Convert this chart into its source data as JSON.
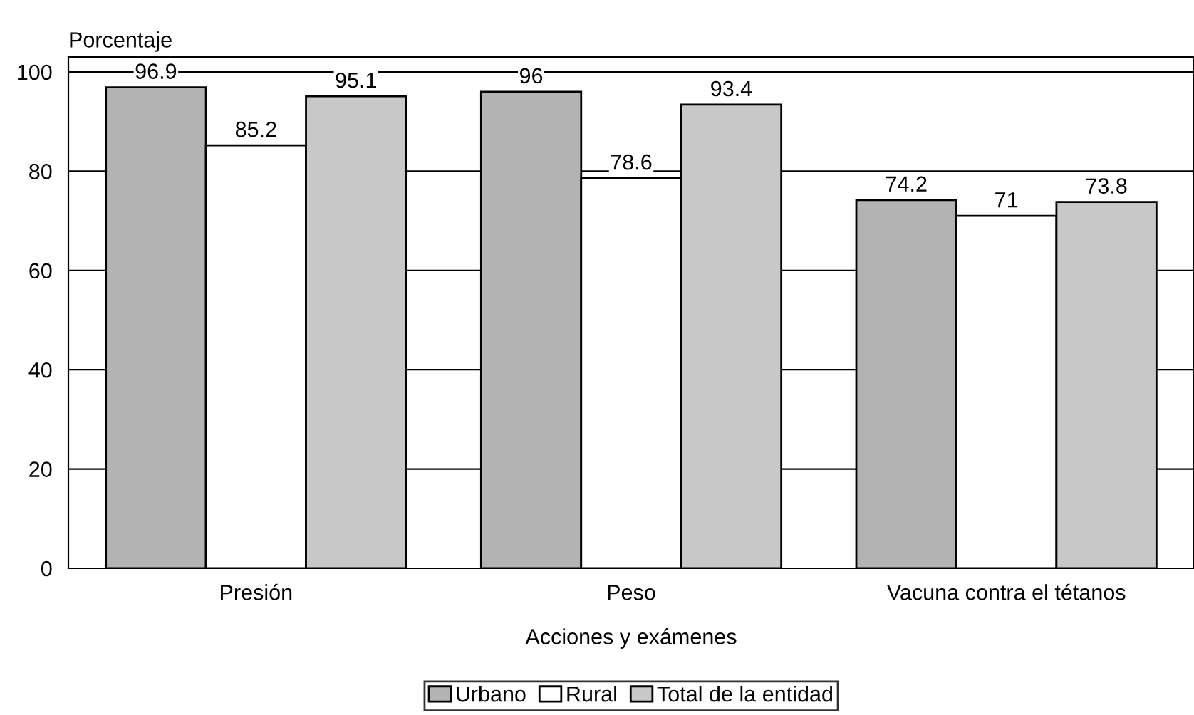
{
  "chart_data": {
    "type": "bar",
    "ylabel": "Porcentaje",
    "xlabel": "Acciones y exámenes",
    "categories": [
      "Presión",
      "Peso",
      "Vacuna contra el tétanos"
    ],
    "series": [
      {
        "name": "Urbano",
        "color": "#b3b3b3",
        "values": [
          96.9,
          96,
          74.2
        ]
      },
      {
        "name": "Rural",
        "color": "#ffffff",
        "values": [
          85.2,
          78.6,
          71
        ]
      },
      {
        "name": "Total de la entidad",
        "color": "#c8c8c8",
        "values": [
          95.1,
          93.4,
          73.8
        ]
      }
    ],
    "ylim": [
      0,
      103
    ],
    "yticks": [
      0,
      20,
      40,
      60,
      80,
      100
    ],
    "grid": "y",
    "legend": "bottom",
    "data_labels": true
  }
}
